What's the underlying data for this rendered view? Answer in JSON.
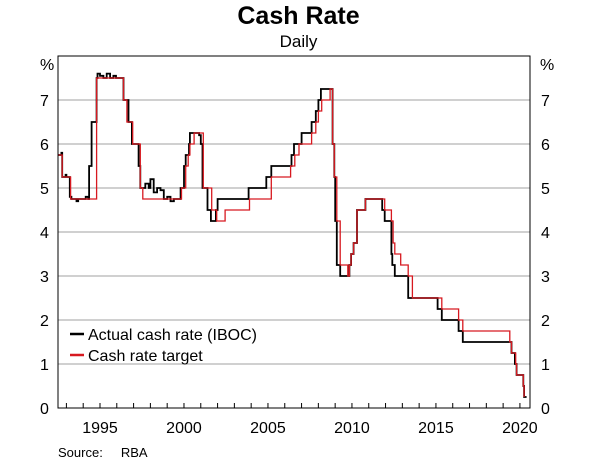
{
  "title": "Cash Rate",
  "subtitle": "Daily",
  "source_label": "Source:",
  "source_value": "RBA",
  "chart_data": {
    "type": "line",
    "title": "Cash Rate",
    "subtitle": "Daily",
    "y_unit_left": "%",
    "y_unit_right": "%",
    "xlim": [
      1992.5,
      2020.6
    ],
    "ylim": [
      0,
      8
    ],
    "x_tick_labels": [
      "1995",
      "2000",
      "2005",
      "2010",
      "2015",
      "2020"
    ],
    "y_tick_labels": [
      "0",
      "1",
      "2",
      "3",
      "4",
      "5",
      "6",
      "7"
    ],
    "grid": true,
    "legend_position": "bottom-left",
    "colors": {
      "actual": "#000000",
      "target": "#d71920",
      "grid": "#a0a0a0"
    },
    "series": [
      {
        "name": "Actual cash rate (IBOC)",
        "color": "#000000",
        "x": [
          1992.5,
          1992.7,
          1992.75,
          1992.95,
          1993.0,
          1993.2,
          1993.3,
          1993.35,
          1993.6,
          1993.7,
          1994.0,
          1994.15,
          1994.3,
          1994.35,
          1994.5,
          1994.6,
          1994.8,
          1994.85,
          1995.0,
          1995.2,
          1995.4,
          1995.6,
          1995.8,
          1995.95,
          1996.0,
          1996.3,
          1996.4,
          1996.6,
          1996.7,
          1996.9,
          1997.0,
          1997.3,
          1997.4,
          1997.5,
          1997.7,
          1997.9,
          1998.0,
          1998.2,
          1998.4,
          1998.6,
          1998.8,
          1999.0,
          1999.2,
          1999.4,
          1999.6,
          1999.8,
          1999.9,
          2000.0,
          2000.1,
          2000.3,
          2000.35,
          2000.6,
          2000.9,
          2001.0,
          2001.1,
          2001.15,
          2001.3,
          2001.4,
          2001.6,
          2001.8,
          2001.9,
          2002.0,
          2002.35,
          2003.0,
          2003.85,
          2004.9,
          2005.2,
          2006.0,
          2006.4,
          2006.55,
          2007.0,
          2007.6,
          2007.85,
          2008.0,
          2008.15,
          2008.7,
          2008.85,
          2008.95,
          2009.0,
          2009.1,
          2009.3,
          2009.75,
          2009.85,
          2009.95,
          2010.1,
          2010.3,
          2010.8,
          2011.8,
          2011.95,
          2012.35,
          2012.4,
          2012.55,
          2012.9,
          2013.35,
          2013.6,
          2015.1,
          2015.35,
          2016.35,
          2016.6,
          2019.4,
          2019.5,
          2019.7,
          2019.8,
          2020.2,
          2020.25,
          2020.4
        ],
        "y": [
          5.75,
          5.8,
          5.25,
          5.3,
          5.25,
          4.8,
          4.75,
          4.75,
          4.7,
          4.75,
          4.75,
          4.8,
          4.75,
          5.5,
          6.5,
          6.5,
          7.5,
          7.6,
          7.55,
          7.5,
          7.6,
          7.5,
          7.55,
          7.5,
          7.5,
          7.5,
          7.0,
          7.0,
          6.5,
          6.0,
          6.0,
          5.5,
          5.0,
          5.0,
          5.1,
          5.0,
          5.2,
          4.9,
          5.0,
          4.95,
          4.75,
          4.8,
          4.7,
          4.75,
          4.75,
          5.0,
          5.0,
          5.5,
          5.75,
          6.0,
          6.25,
          6.25,
          6.2,
          6.0,
          5.0,
          5.0,
          5.0,
          4.5,
          4.25,
          4.25,
          4.5,
          4.75,
          4.75,
          4.75,
          5.0,
          5.25,
          5.5,
          5.5,
          5.75,
          6.0,
          6.25,
          6.5,
          6.75,
          7.0,
          7.25,
          7.25,
          6.0,
          5.25,
          4.25,
          3.25,
          3.0,
          3.0,
          3.25,
          3.5,
          3.75,
          4.5,
          4.75,
          4.5,
          4.25,
          3.5,
          3.25,
          3.0,
          3.0,
          2.5,
          2.5,
          2.25,
          2.0,
          1.75,
          1.5,
          1.5,
          1.25,
          1.0,
          0.75,
          0.5,
          0.25,
          0.25
        ]
      },
      {
        "name": "Cash rate target",
        "color": "#d71920",
        "x": [
          1992.5,
          1992.75,
          1993.25,
          1994.5,
          1994.8,
          1995.97,
          1996.4,
          1996.6,
          1996.95,
          1997.4,
          1997.55,
          1998.9,
          1999.85,
          2000.1,
          2000.25,
          2000.35,
          2000.6,
          2001.0,
          2001.15,
          2001.35,
          2001.65,
          2001.75,
          2001.95,
          2002.35,
          2002.45,
          2003.9,
          2003.95,
          2005.2,
          2006.35,
          2006.6,
          2006.85,
          2007.6,
          2007.85,
          2008.0,
          2008.2,
          2008.7,
          2008.85,
          2008.95,
          2009.1,
          2009.3,
          2009.75,
          2009.85,
          2009.95,
          2010.1,
          2010.3,
          2010.8,
          2011.85,
          2011.95,
          2012.35,
          2012.45,
          2012.55,
          2012.9,
          2013.35,
          2013.6,
          2015.1,
          2015.35,
          2016.35,
          2016.6,
          2019.4,
          2019.5,
          2019.75,
          2019.8,
          2020.2,
          2020.25
        ],
        "y": [
          5.75,
          5.25,
          4.75,
          4.75,
          7.5,
          7.5,
          7.0,
          6.5,
          6.0,
          5.0,
          4.75,
          4.75,
          5.0,
          5.5,
          5.75,
          6.0,
          6.25,
          6.25,
          5.0,
          5.0,
          4.5,
          4.5,
          4.25,
          4.25,
          4.5,
          4.75,
          4.75,
          5.25,
          5.5,
          5.75,
          6.0,
          6.25,
          6.5,
          6.75,
          7.0,
          7.25,
          6.0,
          5.25,
          4.25,
          3.25,
          3.0,
          3.25,
          3.5,
          3.75,
          4.5,
          4.75,
          4.75,
          4.5,
          4.25,
          3.75,
          3.5,
          3.25,
          3.0,
          2.5,
          2.5,
          2.25,
          2.0,
          1.75,
          1.5,
          1.25,
          1.0,
          0.75,
          0.5,
          0.25
        ]
      }
    ]
  }
}
